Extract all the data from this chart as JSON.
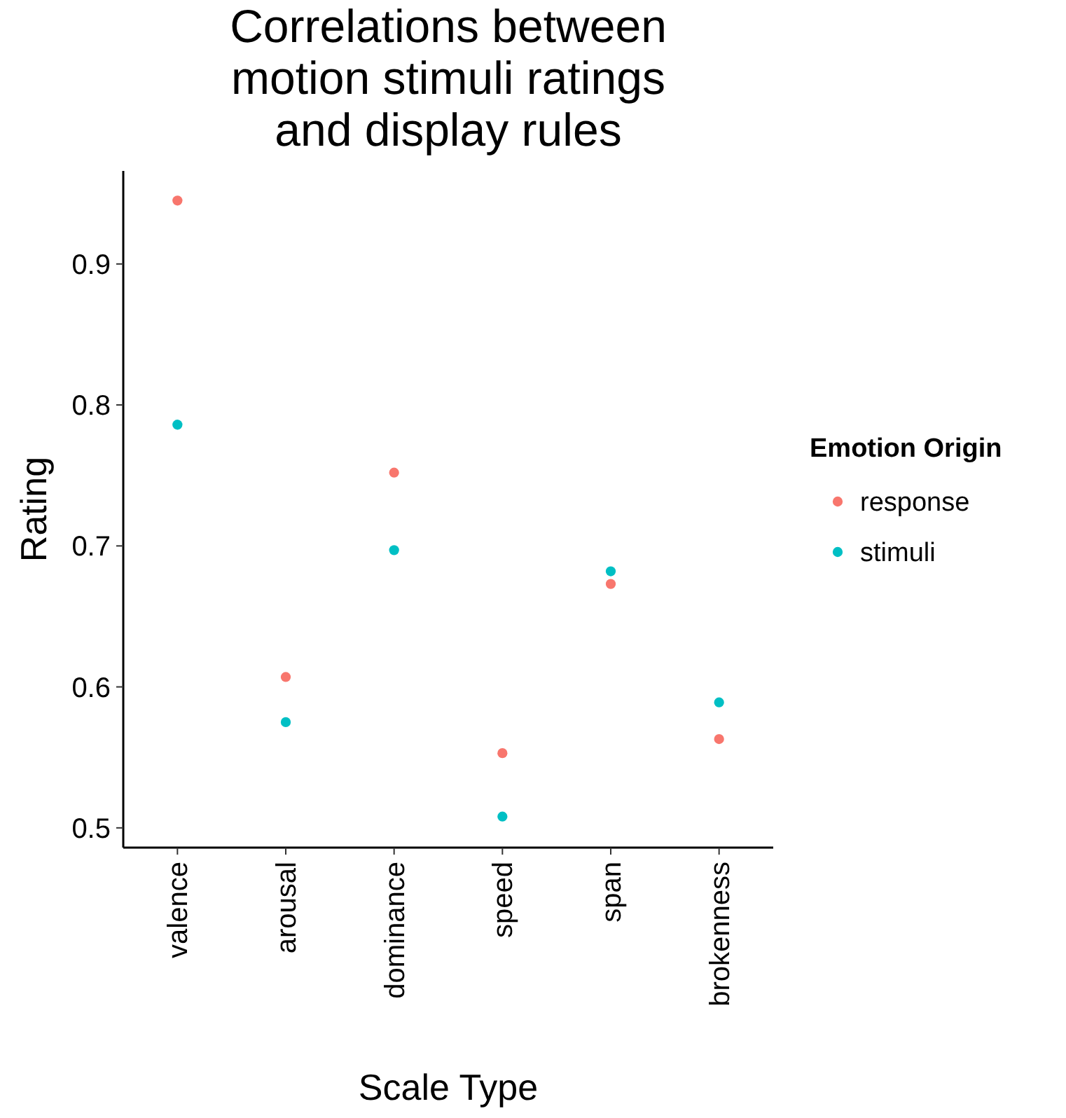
{
  "chart_data": {
    "type": "scatter",
    "title": "Correlations between\nmotion stimuli ratings\nand display rules",
    "xlabel": "Scale Type",
    "ylabel": "Rating",
    "legend_title": "Emotion Origin",
    "categories": [
      "valence",
      "arousal",
      "dominance",
      "speed",
      "span",
      "brokenness"
    ],
    "series": [
      {
        "name": "response",
        "color": "#f8766d",
        "values": [
          0.945,
          0.607,
          0.752,
          0.553,
          0.673,
          0.563
        ]
      },
      {
        "name": "stimuli",
        "color": "#00bfc4",
        "values": [
          0.786,
          0.575,
          0.697,
          0.508,
          0.682,
          0.589
        ]
      }
    ],
    "ylim": [
      0.486,
      0.966
    ],
    "yticks": [
      0.5,
      0.6,
      0.7,
      0.8,
      0.9
    ],
    "grid": false,
    "legend": "right",
    "marker": "circle"
  }
}
